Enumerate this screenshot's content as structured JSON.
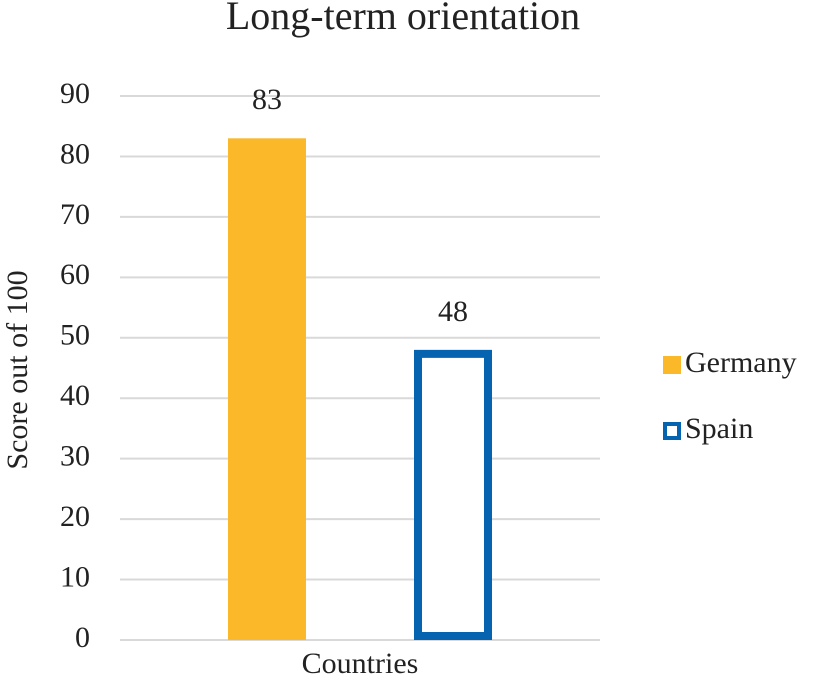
{
  "chart_data": {
    "type": "bar",
    "title": "Long-term orientation",
    "x_label": "Countries",
    "y_label": "Score out of 100",
    "categories": [
      "Countries"
    ],
    "series": [
      {
        "name": "Germany",
        "color": "#FBB829",
        "outline": false,
        "values": [
          83
        ]
      },
      {
        "name": "Spain",
        "color": "#0563B0",
        "outline": true,
        "values": [
          48
        ]
      }
    ],
    "ylim": [
      0,
      90
    ],
    "yticks": [
      0,
      10,
      20,
      30,
      40,
      50,
      60,
      70,
      80,
      90
    ],
    "grid": true,
    "legend": "right"
  }
}
